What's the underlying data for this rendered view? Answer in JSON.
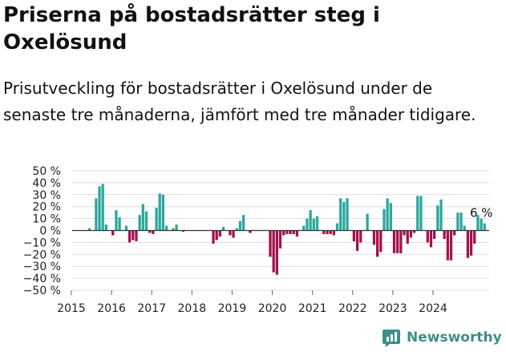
{
  "title": "Priserna på bostadsrätter steg i Oxelösund",
  "subtitle": "Prisutveckling för bostadsrätter i Oxelösund under de senaste tre månaderna, jämfört med tre månader tidigare.",
  "brand": {
    "name": "Newsworthy",
    "icon": "newsworthy-logo-icon"
  },
  "colors": {
    "positive": "#2aa79b",
    "negative": "#a3114c",
    "zero_line": "#333333",
    "grid": "#dddddd",
    "brand": "#3e8f87"
  },
  "chart_data": {
    "type": "bar",
    "y_ticks": [
      "50 %",
      "40 %",
      "30 %",
      "20 %",
      "10 %",
      "0 %",
      "−10 %",
      "−20 %",
      "−30 %",
      "−40 %",
      "−50 %"
    ],
    "ylim": [
      -50,
      50
    ],
    "x_ticks": [
      "2015",
      "2016",
      "2017",
      "2018",
      "2019",
      "2020",
      "2021",
      "2022",
      "2023",
      "2024"
    ],
    "grid": "horizontal",
    "annotation": "6 %",
    "series": [
      {
        "frequency": "monthly",
        "start": "2015-06",
        "values": [
          2,
          0,
          27,
          37,
          39,
          5,
          0,
          -4,
          17,
          11,
          0,
          4,
          -10,
          -8,
          -9,
          13,
          22,
          16,
          -2,
          -3,
          19,
          31,
          30,
          4,
          0,
          2,
          5,
          0,
          -1,
          0,
          0,
          0,
          0,
          0,
          0,
          0,
          0,
          -11,
          -8,
          -5,
          3,
          0,
          -4,
          -6,
          2,
          8,
          13,
          0,
          -2,
          0,
          0,
          0,
          0,
          0,
          -22,
          -35,
          -37,
          -15,
          -4,
          -3,
          -3,
          -3,
          -5,
          0,
          4,
          10,
          17,
          10,
          12,
          0,
          -3,
          -3,
          -3,
          -4,
          6,
          27,
          24,
          27,
          0,
          -9,
          -17,
          -10,
          0,
          14,
          0,
          -12,
          -22,
          -18,
          18,
          27,
          23,
          -19,
          -19,
          -19,
          -4,
          -11,
          -6,
          -2,
          29,
          29,
          0,
          -10,
          -14,
          -7,
          21,
          26,
          -7,
          -25,
          -25,
          -4,
          15,
          15,
          4,
          -23,
          -21,
          -11,
          13,
          10,
          6
        ]
      }
    ]
  }
}
